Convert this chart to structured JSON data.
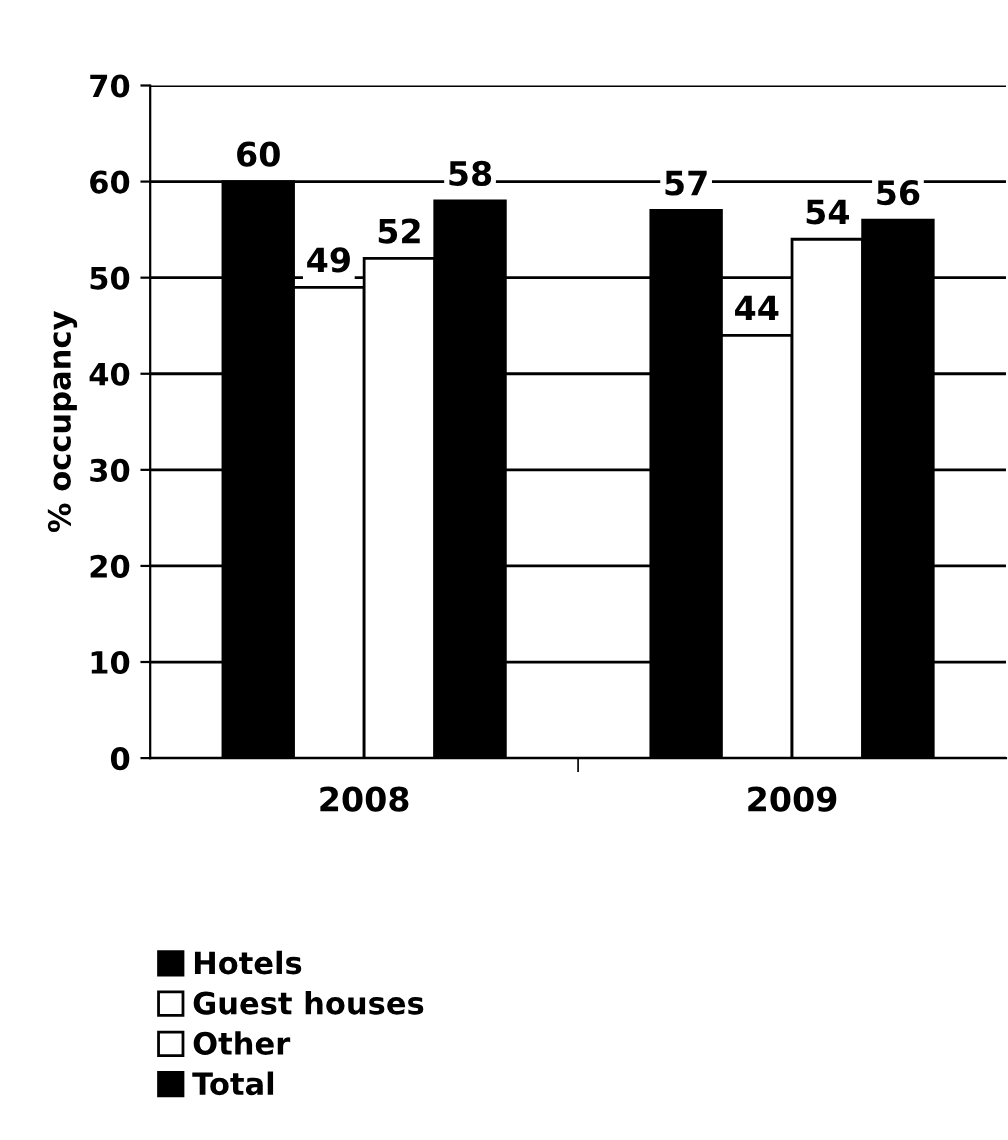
{
  "chart_data": {
    "type": "bar",
    "ylabel": "% occupancy",
    "categories": [
      "2008",
      "2009"
    ],
    "series": [
      {
        "name": "Hotels",
        "color": "#000000",
        "values": [
          60,
          57
        ]
      },
      {
        "name": "Guest houses",
        "color": "#ffffff",
        "values": [
          49,
          44
        ]
      },
      {
        "name": "Other",
        "color": "#ffffff",
        "values": [
          52,
          54
        ]
      },
      {
        "name": "Total",
        "color": "#000000",
        "values": [
          58,
          56
        ]
      }
    ],
    "ylim": [
      0,
      70
    ],
    "yticks": [
      0,
      10,
      20,
      30,
      40,
      50,
      60,
      70
    ],
    "grid": "y",
    "legend": "bottom left",
    "data_labels": true
  }
}
